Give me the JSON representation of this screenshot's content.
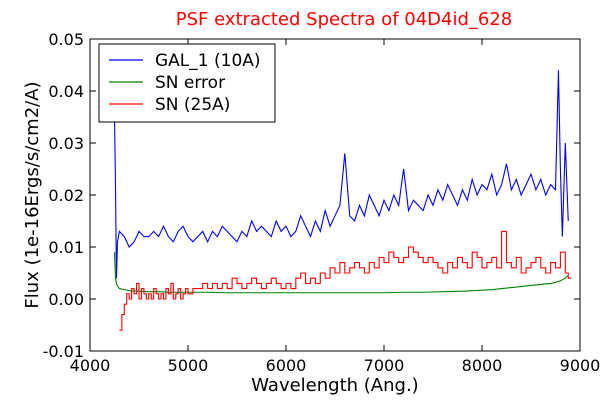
{
  "chart_data": {
    "type": "line",
    "title": "PSF extracted Spectra of 04D4id_628",
    "xlabel": "Wavelength (Ang.)",
    "ylabel": "Flux (1e-16Ergs/s/cm2/A)",
    "xlim": [
      4000,
      9000
    ],
    "ylim": [
      -0.01,
      0.05
    ],
    "x_ticks": [
      "4000",
      "5000",
      "6000",
      "7000",
      "8000",
      "9000"
    ],
    "y_ticks": [
      "-0.01",
      "0.00",
      "0.01",
      "0.02",
      "0.03",
      "0.04",
      "0.05"
    ],
    "grid": false,
    "legend_position": "top-left",
    "series": [
      {
        "name": "GAL_1 (10A)",
        "color": "#0000ff",
        "style": "line",
        "x": [
          4250,
          4260,
          4270,
          4280,
          4300,
          4350,
          4400,
          4450,
          4500,
          4550,
          4600,
          4650,
          4700,
          4750,
          4800,
          4850,
          4900,
          4950,
          5000,
          5050,
          5100,
          5150,
          5200,
          5250,
          5300,
          5350,
          5400,
          5450,
          5500,
          5550,
          5600,
          5650,
          5700,
          5750,
          5800,
          5850,
          5900,
          5950,
          6000,
          6050,
          6100,
          6150,
          6200,
          6250,
          6300,
          6350,
          6400,
          6450,
          6500,
          6550,
          6600,
          6650,
          6700,
          6750,
          6800,
          6850,
          6900,
          6950,
          7000,
          7050,
          7100,
          7150,
          7200,
          7250,
          7300,
          7350,
          7400,
          7450,
          7500,
          7550,
          7600,
          7650,
          7700,
          7750,
          7800,
          7850,
          7900,
          7950,
          8000,
          8050,
          8100,
          8150,
          8200,
          8250,
          8300,
          8350,
          8400,
          8450,
          8500,
          8550,
          8600,
          8650,
          8700,
          8750,
          8780,
          8800,
          8820,
          8850,
          8880
        ],
        "y": [
          0.035,
          0.022,
          0.004,
          0.011,
          0.013,
          0.012,
          0.01,
          0.011,
          0.013,
          0.012,
          0.012,
          0.013,
          0.012,
          0.014,
          0.012,
          0.011,
          0.013,
          0.014,
          0.012,
          0.011,
          0.012,
          0.013,
          0.011,
          0.013,
          0.012,
          0.014,
          0.013,
          0.012,
          0.011,
          0.013,
          0.012,
          0.015,
          0.013,
          0.014,
          0.013,
          0.012,
          0.015,
          0.013,
          0.014,
          0.012,
          0.013,
          0.016,
          0.014,
          0.012,
          0.015,
          0.013,
          0.017,
          0.014,
          0.016,
          0.018,
          0.028,
          0.016,
          0.015,
          0.018,
          0.016,
          0.02,
          0.018,
          0.016,
          0.019,
          0.017,
          0.02,
          0.018,
          0.025,
          0.017,
          0.019,
          0.018,
          0.017,
          0.02,
          0.018,
          0.021,
          0.019,
          0.022,
          0.02,
          0.018,
          0.021,
          0.019,
          0.023,
          0.02,
          0.022,
          0.021,
          0.024,
          0.02,
          0.022,
          0.026,
          0.021,
          0.023,
          0.02,
          0.022,
          0.024,
          0.021,
          0.023,
          0.02,
          0.022,
          0.021,
          0.044,
          0.025,
          0.012,
          0.03,
          0.015
        ]
      },
      {
        "name": "SN error",
        "color": "#008000",
        "style": "line",
        "x": [
          4250,
          4260,
          4270,
          4280,
          4300,
          4350,
          4400,
          4500,
          4600,
          4700,
          4800,
          4900,
          5000,
          5200,
          5400,
          5600,
          5800,
          6000,
          6200,
          6400,
          6600,
          6800,
          7000,
          7200,
          7400,
          7600,
          7800,
          7900,
          8000,
          8100,
          8200,
          8300,
          8400,
          8500,
          8600,
          8700,
          8750,
          8800,
          8850,
          8880
        ],
        "y": [
          0.009,
          0.004,
          0.003,
          0.0025,
          0.002,
          0.0018,
          0.0016,
          0.0015,
          0.0014,
          0.0014,
          0.0013,
          0.0013,
          0.0013,
          0.0013,
          0.0012,
          0.0012,
          0.0012,
          0.0012,
          0.0012,
          0.0012,
          0.0012,
          0.0012,
          0.0012,
          0.0013,
          0.0013,
          0.0014,
          0.0015,
          0.0016,
          0.0017,
          0.0018,
          0.002,
          0.0022,
          0.0024,
          0.0026,
          0.0028,
          0.003,
          0.0032,
          0.0035,
          0.004,
          0.0045
        ]
      },
      {
        "name": "SN (25A)",
        "color": "#ff0000",
        "style": "step",
        "x": [
          4300,
          4325,
          4350,
          4375,
          4400,
          4425,
          4450,
          4475,
          4500,
          4525,
          4550,
          4575,
          4600,
          4625,
          4650,
          4675,
          4700,
          4725,
          4750,
          4775,
          4800,
          4825,
          4850,
          4875,
          4900,
          4925,
          4950,
          4975,
          5000,
          5050,
          5100,
          5150,
          5200,
          5250,
          5300,
          5350,
          5400,
          5450,
          5500,
          5550,
          5600,
          5650,
          5700,
          5750,
          5800,
          5850,
          5900,
          5950,
          6000,
          6050,
          6100,
          6150,
          6200,
          6250,
          6300,
          6350,
          6400,
          6450,
          6500,
          6550,
          6600,
          6650,
          6700,
          6750,
          6800,
          6850,
          6900,
          6950,
          7000,
          7050,
          7100,
          7150,
          7200,
          7250,
          7300,
          7350,
          7400,
          7450,
          7500,
          7550,
          7600,
          7650,
          7700,
          7750,
          7800,
          7850,
          7900,
          7950,
          8000,
          8050,
          8100,
          8150,
          8200,
          8250,
          8300,
          8350,
          8400,
          8450,
          8500,
          8550,
          8600,
          8650,
          8700,
          8750,
          8800,
          8850,
          8880
        ],
        "y": [
          -0.006,
          -0.003,
          -0.001,
          0.001,
          0.0,
          0.002,
          0.001,
          0.003,
          0.0,
          0.002,
          0.001,
          0.0,
          0.001,
          0.0,
          0.002,
          0.001,
          0.0,
          0.001,
          0.0,
          0.002,
          0.001,
          0.003,
          0.0,
          0.001,
          0.002,
          0.0,
          0.001,
          0.002,
          0.001,
          0.002,
          0.002,
          0.003,
          0.002,
          0.003,
          0.002,
          0.003,
          0.002,
          0.004,
          0.003,
          0.002,
          0.003,
          0.004,
          0.003,
          0.002,
          0.003,
          0.004,
          0.003,
          0.002,
          0.003,
          0.002,
          0.004,
          0.005,
          0.003,
          0.004,
          0.003,
          0.005,
          0.004,
          0.006,
          0.005,
          0.007,
          0.005,
          0.006,
          0.007,
          0.006,
          0.005,
          0.007,
          0.006,
          0.008,
          0.007,
          0.009,
          0.008,
          0.007,
          0.008,
          0.01,
          0.009,
          0.008,
          0.007,
          0.008,
          0.007,
          0.006,
          0.005,
          0.007,
          0.006,
          0.008,
          0.007,
          0.006,
          0.009,
          0.008,
          0.006,
          0.007,
          0.008,
          0.006,
          0.013,
          0.007,
          0.006,
          0.008,
          0.005,
          0.006,
          0.007,
          0.008,
          0.006,
          0.005,
          0.007,
          0.006,
          0.009,
          0.005,
          0.004
        ]
      }
    ]
  }
}
